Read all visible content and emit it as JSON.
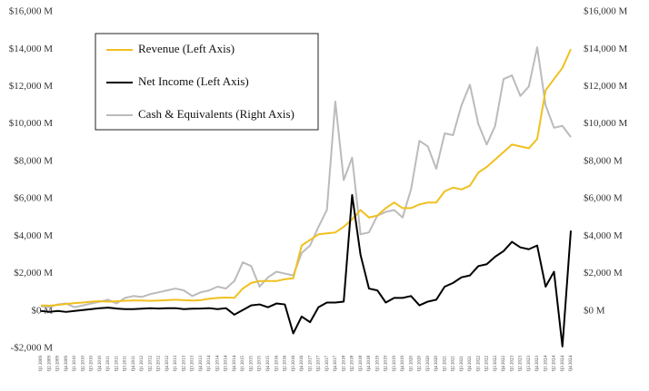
{
  "chart_data": {
    "type": "line",
    "categories": [
      "Q1 2009",
      "Q2 2009",
      "Q3 2009",
      "Q4 2009",
      "Q1 2010",
      "Q2 2010",
      "Q3 2010",
      "Q4 2010",
      "Q1 2011",
      "Q2 2011",
      "Q3 2011",
      "Q4 2011",
      "Q1 2012",
      "Q2 2012",
      "Q3 2012",
      "Q4 2012",
      "Q1 2013",
      "Q2 2013",
      "Q3 2013",
      "Q4 2013",
      "Q1 2014",
      "Q2 2014",
      "Q3 2014",
      "Q4 2014",
      "Q1 2015",
      "Q2 2015",
      "Q3 2015",
      "Q4 2015",
      "Q1 2016",
      "Q2 2016",
      "Q3 2016",
      "Q4 2016",
      "Q1 2017",
      "Q2 2017",
      "Q3 2017",
      "Q4 2017",
      "Q1 2018",
      "Q2 2018",
      "Q3 2018",
      "Q4 2018",
      "Q1 2019",
      "Q2 2019",
      "Q3 2019",
      "Q4 2019",
      "Q1 2020",
      "Q2 2020",
      "Q3 2020",
      "Q4 2020",
      "Q1 2021",
      "Q2 2021",
      "Q3 2021",
      "Q4 2021",
      "Q1 2022",
      "Q2 2022",
      "Q3 2022",
      "Q4 2022",
      "Q1 2023",
      "Q2 2023",
      "Q3 2023",
      "Q4 2023",
      "Q1 2024",
      "Q2 2024",
      "Q3 2024",
      "Q4 2024"
    ],
    "series": [
      {
        "name": "Revenue (Left Axis)",
        "color": "#f0c020",
        "axis": "y",
        "values": [
          300,
          280,
          320,
          380,
          420,
          450,
          500,
          520,
          500,
          520,
          550,
          560,
          560,
          540,
          560,
          580,
          600,
          580,
          560,
          580,
          650,
          700,
          720,
          700,
          1200,
          1500,
          1600,
          1600,
          1600,
          1700,
          1750,
          3500,
          3800,
          4100,
          4150,
          4200,
          4500,
          4900,
          5400,
          5000,
          5100,
          5500,
          5800,
          5500,
          5500,
          5700,
          5800,
          5800,
          6400,
          6600,
          6500,
          6700,
          7400,
          7700,
          8100,
          8500,
          8900,
          8800,
          8700,
          9200,
          11800,
          12400,
          13000,
          14000
        ]
      },
      {
        "name": "Net Income (Left Axis)",
        "color": "#000000",
        "axis": "y",
        "values": [
          0,
          -50,
          0,
          -50,
          0,
          50,
          100,
          150,
          180,
          130,
          100,
          100,
          120,
          150,
          130,
          150,
          150,
          100,
          120,
          130,
          150,
          100,
          150,
          -200,
          50,
          300,
          350,
          200,
          400,
          350,
          -1200,
          -300,
          -600,
          200,
          450,
          450,
          500,
          6200,
          3000,
          1200,
          1100,
          450,
          700,
          700,
          800,
          300,
          500,
          600,
          1300,
          1500,
          1800,
          1900,
          2400,
          2500,
          2900,
          3200,
          3700,
          3400,
          3300,
          3500,
          1300,
          2100,
          -1900,
          4300
        ]
      },
      {
        "name": "Cash & Equivalents (Right Axis)",
        "color": "#bbbbbb",
        "axis": "y2",
        "values": [
          250,
          200,
          350,
          400,
          200,
          300,
          400,
          500,
          600,
          400,
          700,
          800,
          750,
          900,
          1000,
          1100,
          1200,
          1100,
          800,
          1000,
          1100,
          1300,
          1200,
          1600,
          2600,
          2400,
          1300,
          1800,
          2100,
          2000,
          1900,
          3100,
          3500,
          4500,
          5400,
          11200,
          7000,
          8200,
          4100,
          4200,
          5100,
          5300,
          5400,
          5000,
          6500,
          9100,
          8800,
          7600,
          9500,
          9400,
          11000,
          12100,
          10000,
          8900,
          9900,
          12400,
          12600,
          11500,
          12000,
          14100,
          11000,
          9800,
          9900,
          9300
        ]
      }
    ],
    "ylim": [
      -2000,
      16000
    ],
    "yticks": [
      {
        "value": -2000,
        "label": "-$2,000 M"
      },
      {
        "value": 0,
        "label": "$0 M"
      },
      {
        "value": 2000,
        "label": "$2,000 M"
      },
      {
        "value": 4000,
        "label": "$4,000 M"
      },
      {
        "value": 6000,
        "label": "$6,000 M"
      },
      {
        "value": 8000,
        "label": "$8,000 M"
      },
      {
        "value": 10000,
        "label": "$10,000 M"
      },
      {
        "value": 12000,
        "label": "$12,000 M"
      },
      {
        "value": 14000,
        "label": "$14,000 M"
      },
      {
        "value": 16000,
        "label": "$16,000 M"
      }
    ],
    "y2lim": [
      -2000,
      16000
    ],
    "y2ticks": [
      {
        "value": 0,
        "label": "$0 M"
      },
      {
        "value": 2000,
        "label": "$2,000 M"
      },
      {
        "value": 4000,
        "label": "$4,000 M"
      },
      {
        "value": 6000,
        "label": "$6,000 M"
      },
      {
        "value": 8000,
        "label": "$8,000 M"
      },
      {
        "value": 10000,
        "label": "$10,000 M"
      },
      {
        "value": 12000,
        "label": "$12,000 M"
      },
      {
        "value": 14000,
        "label": "$14,000 M"
      },
      {
        "value": 16000,
        "label": "$16,000 M"
      }
    ],
    "grid": false
  }
}
